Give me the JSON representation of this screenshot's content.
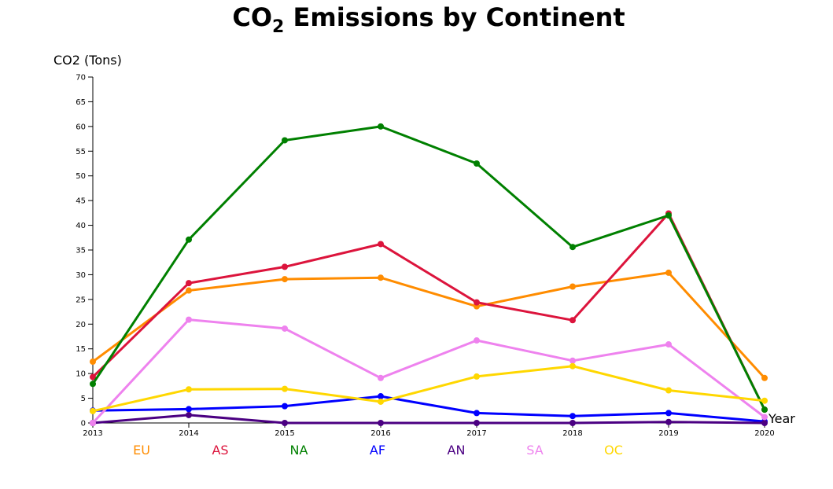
{
  "chart_data": {
    "type": "line",
    "title": {
      "main": "CO",
      "subscript": "2",
      "rest": " Emissions by Continent"
    },
    "xlabel": "Year",
    "ylabel": "CO2 (Tons)",
    "x": [
      "2013",
      "2014",
      "2015",
      "2016",
      "2017",
      "2018",
      "2019",
      "2020"
    ],
    "ylim": [
      0,
      70
    ],
    "yticks": [
      "0",
      "5",
      "10",
      "15",
      "20",
      "25",
      "30",
      "35",
      "40",
      "45",
      "50",
      "55",
      "60",
      "65",
      "70"
    ],
    "grid": false,
    "legend_position": "bottom",
    "series": [
      {
        "name": "EU",
        "color": "#ff8c00",
        "values": [
          12.4,
          26.8,
          29.1,
          29.4,
          23.6,
          27.6,
          30.4,
          9.1
        ]
      },
      {
        "name": "AS",
        "color": "#dc143c",
        "values": [
          9.3,
          28.3,
          31.6,
          36.2,
          24.4,
          20.8,
          42.4,
          2.7
        ]
      },
      {
        "name": "NA",
        "color": "#008000",
        "values": [
          7.9,
          37.1,
          57.2,
          60.0,
          52.5,
          35.6,
          42.0,
          2.7
        ]
      },
      {
        "name": "AF",
        "color": "#0000ff",
        "values": [
          2.5,
          2.8,
          3.4,
          5.4,
          2.0,
          1.4,
          2.0,
          0.3
        ]
      },
      {
        "name": "AN",
        "color": "#4b0082",
        "values": [
          0.0,
          1.6,
          0.0,
          0.0,
          0.0,
          0.0,
          0.2,
          0.0
        ]
      },
      {
        "name": "SA",
        "color": "#ee82ee",
        "values": [
          0.0,
          20.9,
          19.1,
          9.1,
          16.7,
          12.6,
          15.9,
          1.2
        ]
      },
      {
        "name": "OC",
        "color": "#ffd700",
        "values": [
          2.4,
          6.8,
          6.9,
          4.3,
          9.4,
          11.5,
          6.6,
          4.5
        ]
      }
    ]
  }
}
